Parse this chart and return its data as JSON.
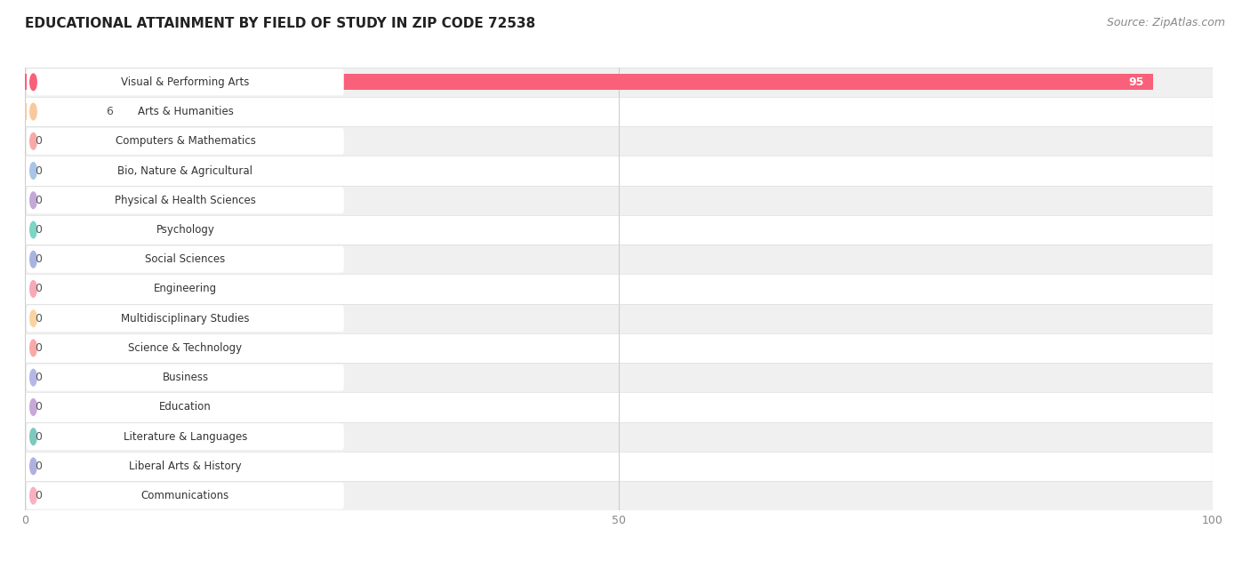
{
  "title": "EDUCATIONAL ATTAINMENT BY FIELD OF STUDY IN ZIP CODE 72538",
  "source": "Source: ZipAtlas.com",
  "categories": [
    "Visual & Performing Arts",
    "Arts & Humanities",
    "Computers & Mathematics",
    "Bio, Nature & Agricultural",
    "Physical & Health Sciences",
    "Psychology",
    "Social Sciences",
    "Engineering",
    "Multidisciplinary Studies",
    "Science & Technology",
    "Business",
    "Education",
    "Literature & Languages",
    "Liberal Arts & History",
    "Communications"
  ],
  "values": [
    95,
    6,
    0,
    0,
    0,
    0,
    0,
    0,
    0,
    0,
    0,
    0,
    0,
    0,
    0
  ],
  "bar_colors": [
    "#f9607a",
    "#f9c99e",
    "#f9a8a8",
    "#a8c4e8",
    "#c4a8d8",
    "#7dd4c8",
    "#a8b4e0",
    "#f9a8b8",
    "#f9d4a0",
    "#f9a8a8",
    "#b4b8e8",
    "#c8a8d8",
    "#7dc8c0",
    "#b0b0e0",
    "#f9b0c0"
  ],
  "pill_colors": [
    "#f9607a",
    "#f9c99e",
    "#f9a8a8",
    "#a8c4e8",
    "#c4a8d8",
    "#7dd4c8",
    "#a8b4e0",
    "#f9a8b8",
    "#f9d4a0",
    "#f9a8a8",
    "#b4b8e8",
    "#c8a8d8",
    "#7dc8c0",
    "#b0b0e0",
    "#f9b0c0"
  ],
  "xlim": [
    0,
    100
  ],
  "xticks": [
    0,
    50,
    100
  ],
  "background_color": "#ffffff",
  "row_colors": [
    "#f0f0f0",
    "#ffffff"
  ],
  "title_fontsize": 11,
  "source_fontsize": 9,
  "bar_height": 0.55,
  "label_fontsize": 9
}
